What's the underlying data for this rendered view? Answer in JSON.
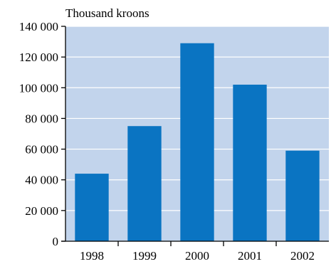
{
  "unit_label": "Thousand kroons",
  "colors": {
    "plot_background": "#c2d4ec",
    "bar": "#0a74c2",
    "gridline": "#ffffff",
    "axis": "#000000"
  },
  "chart_data": {
    "type": "bar",
    "title": "",
    "xlabel": "",
    "ylabel": "Thousand kroons",
    "categories": [
      "1998",
      "1999",
      "2000",
      "2001",
      "2002"
    ],
    "series": [
      {
        "values": [
          44000,
          75000,
          129000,
          102000,
          59000
        ]
      }
    ],
    "ylim": [
      0,
      140000
    ],
    "yticks": [
      0,
      20000,
      40000,
      60000,
      80000,
      100000,
      120000,
      140000
    ],
    "ytick_labels": [
      "0",
      "20 000",
      "40 000",
      "60 000",
      "80 000",
      "100 000",
      "120 000",
      "140 000"
    ],
    "grid": true,
    "legend": "none"
  }
}
